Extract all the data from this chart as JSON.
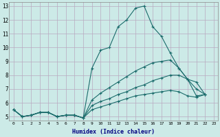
{
  "xlabel": "Humidex (Indice chaleur)",
  "ylabel": "",
  "xlim": [
    -0.5,
    23.5
  ],
  "ylim": [
    4.7,
    13.3
  ],
  "yticks": [
    5,
    6,
    7,
    8,
    9,
    10,
    11,
    12,
    13
  ],
  "xticks": [
    0,
    1,
    2,
    3,
    4,
    5,
    6,
    7,
    8,
    9,
    10,
    11,
    12,
    13,
    14,
    15,
    16,
    17,
    18,
    19,
    20,
    21,
    22,
    23
  ],
  "bg_color": "#cceae7",
  "grid_color": "#b8a8c0",
  "line_color": "#1a6b6b",
  "line_width": 0.8,
  "marker": "+",
  "marker_size": 3.5,
  "series": [
    [
      5.5,
      5.0,
      5.1,
      5.3,
      5.3,
      5.0,
      5.1,
      5.1,
      4.9,
      8.5,
      9.8,
      10.0,
      11.5,
      12.0,
      12.85,
      13.0,
      11.5,
      10.8,
      9.6,
      8.5,
      7.7,
      6.5,
      6.6
    ],
    [
      5.5,
      5.0,
      5.1,
      5.3,
      5.3,
      5.0,
      5.1,
      5.1,
      4.9,
      6.2,
      6.7,
      7.1,
      7.5,
      7.9,
      8.3,
      8.6,
      8.9,
      9.0,
      9.1,
      8.5,
      7.7,
      7.5,
      6.6
    ],
    [
      5.5,
      5.0,
      5.1,
      5.3,
      5.3,
      5.0,
      5.1,
      5.1,
      4.9,
      5.8,
      6.1,
      6.3,
      6.6,
      6.8,
      7.1,
      7.3,
      7.6,
      7.8,
      8.0,
      8.0,
      7.7,
      7.0,
      6.6
    ],
    [
      5.5,
      5.0,
      5.1,
      5.3,
      5.3,
      5.0,
      5.1,
      5.1,
      4.9,
      5.5,
      5.7,
      5.9,
      6.1,
      6.3,
      6.5,
      6.6,
      6.7,
      6.8,
      6.9,
      6.8,
      6.5,
      6.4,
      6.6
    ]
  ]
}
